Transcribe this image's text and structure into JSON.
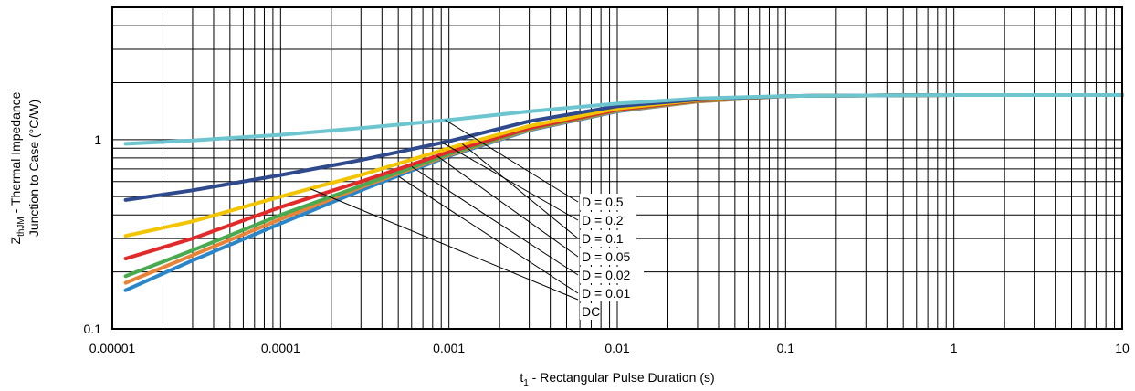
{
  "chart_data": {
    "type": "line",
    "x_scale": "log",
    "y_scale": "log",
    "xlim": [
      1e-05,
      10
    ],
    "ylim": [
      0.1,
      5
    ],
    "grid": true,
    "xlabel": {
      "prefix": "t",
      "sub": "1",
      "suffix": " - Rectangular Pulse Duration (s)"
    },
    "ylabel_line1": {
      "prefix": "Z",
      "sub": "thJM",
      "suffix": " - Thermal Impedance"
    },
    "ylabel_line2": "Junction to Case (°C/W)",
    "x_ticks": [
      {
        "value": 1e-05,
        "label": "0.00001"
      },
      {
        "value": 0.0001,
        "label": "0.0001"
      },
      {
        "value": 0.001,
        "label": "0.001"
      },
      {
        "value": 0.01,
        "label": "0.01"
      },
      {
        "value": 0.1,
        "label": "0.1"
      },
      {
        "value": 1,
        "label": "1"
      },
      {
        "value": 10,
        "label": "10"
      }
    ],
    "y_ticks": [
      {
        "value": 0.1,
        "label": "0.1"
      },
      {
        "value": 1,
        "label": "1"
      }
    ],
    "series": [
      {
        "name": "D = 0.5",
        "color": "#6cc5cf",
        "x": [
          1.2e-05,
          3e-05,
          0.0001,
          0.0003,
          0.001,
          0.003,
          0.01,
          0.03,
          0.1,
          1,
          10
        ],
        "y": [
          0.95,
          0.99,
          1.06,
          1.15,
          1.27,
          1.41,
          1.55,
          1.65,
          1.7,
          1.72,
          1.72
        ]
      },
      {
        "name": "D = 0.2",
        "color": "#2f4a8c",
        "x": [
          1.2e-05,
          3e-05,
          0.0001,
          0.0003,
          0.001,
          0.003,
          0.01,
          0.03,
          0.1,
          1,
          10
        ],
        "y": [
          0.48,
          0.54,
          0.65,
          0.78,
          0.98,
          1.25,
          1.5,
          1.63,
          1.7,
          1.72,
          1.72
        ]
      },
      {
        "name": "D = 0.1",
        "color": "#f2c500",
        "x": [
          1.2e-05,
          3e-05,
          0.0001,
          0.0003,
          0.001,
          0.003,
          0.01,
          0.03,
          0.1,
          1,
          10
        ],
        "y": [
          0.31,
          0.37,
          0.5,
          0.65,
          0.9,
          1.18,
          1.46,
          1.62,
          1.7,
          1.72,
          1.72
        ]
      },
      {
        "name": "D = 0.05",
        "color": "#e12a2a",
        "x": [
          1.2e-05,
          3e-05,
          0.0001,
          0.0003,
          0.001,
          0.003,
          0.01,
          0.03,
          0.1,
          1,
          10
        ],
        "y": [
          0.235,
          0.3,
          0.44,
          0.6,
          0.86,
          1.15,
          1.44,
          1.61,
          1.7,
          1.72,
          1.72
        ]
      },
      {
        "name": "D = 0.02",
        "color": "#4aaa50",
        "x": [
          1.2e-05,
          3e-05,
          0.0001,
          0.0003,
          0.001,
          0.003,
          0.01,
          0.03,
          0.1,
          1,
          10
        ],
        "y": [
          0.19,
          0.26,
          0.4,
          0.57,
          0.84,
          1.14,
          1.43,
          1.6,
          1.7,
          1.72,
          1.72
        ]
      },
      {
        "name": "D = 0.01",
        "color": "#e8843a",
        "x": [
          1.2e-05,
          3e-05,
          0.0001,
          0.0003,
          0.001,
          0.003,
          0.01,
          0.03,
          0.1,
          1,
          10
        ],
        "y": [
          0.175,
          0.245,
          0.38,
          0.56,
          0.83,
          1.13,
          1.42,
          1.59,
          1.7,
          1.72,
          1.72
        ]
      },
      {
        "name": "DC",
        "color": "#2a86c8",
        "x": [
          1.2e-05,
          3e-05,
          0.0001,
          0.0003,
          0.001,
          0.003,
          0.01,
          0.03,
          0.1,
          1,
          10
        ],
        "y": [
          0.16,
          0.23,
          0.36,
          0.54,
          0.82,
          1.12,
          1.41,
          1.59,
          1.7,
          1.72,
          1.72
        ]
      }
    ],
    "annotations": [
      {
        "label": "D = 0.5",
        "leader_from": [
          0.00095,
          1.27
        ]
      },
      {
        "label": "D = 0.2",
        "leader_from": [
          0.0009,
          0.97
        ]
      },
      {
        "label": "D = 0.1",
        "leader_from": [
          0.0012,
          0.95
        ]
      },
      {
        "label": "D = 0.05",
        "leader_from": [
          0.00085,
          0.82
        ]
      },
      {
        "label": "D = 0.02",
        "leader_from": [
          0.0006,
          0.72
        ]
      },
      {
        "label": "D = 0.01",
        "leader_from": [
          0.0005,
          0.64
        ]
      },
      {
        "label": "DC",
        "leader_from": [
          0.00015,
          0.55
        ]
      }
    ]
  }
}
